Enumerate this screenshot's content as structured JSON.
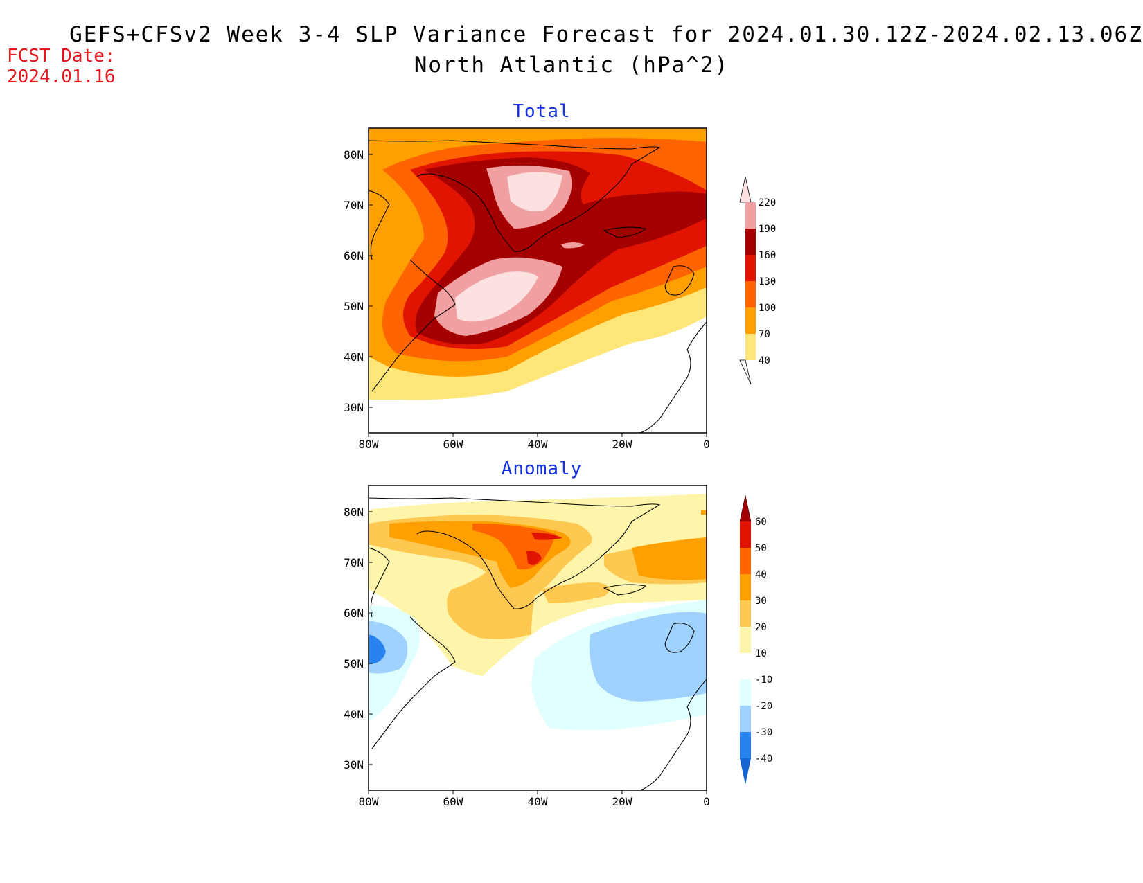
{
  "header": {
    "title_line1": "GEFS+CFSv2 Week 3-4 SLP Variance Forecast for 2024.01.30.12Z-2024.02.13.06Z",
    "title_line2": "North Atlantic (hPa^2)",
    "fcst_label": "FCST Date:",
    "fcst_date": "2024.01.16"
  },
  "panels": [
    {
      "title": "Total",
      "lat_labels": [
        "80N",
        "70N",
        "60N",
        "50N",
        "40N",
        "30N"
      ],
      "lon_labels": [
        "80W",
        "60W",
        "40W",
        "20W",
        "0"
      ],
      "colorbar": {
        "levels": [
          "220",
          "190",
          "160",
          "130",
          "100",
          "70",
          "40"
        ],
        "colors": [
          "#fde1e1",
          "#f0a0a0",
          "#a50000",
          "#e01400",
          "#ff6400",
          "#ffa000",
          "#ffe678"
        ]
      }
    },
    {
      "title": "Anomaly",
      "lat_labels": [
        "80N",
        "70N",
        "60N",
        "50N",
        "40N",
        "30N"
      ],
      "lon_labels": [
        "80W",
        "60W",
        "40W",
        "20W",
        "0"
      ],
      "colorbar": {
        "levels": [
          "60",
          "50",
          "40",
          "30",
          "20",
          "10",
          "-10",
          "-20",
          "-30",
          "-40"
        ],
        "colors": [
          "#a50000",
          "#e01400",
          "#ff6400",
          "#ffa000",
          "#ffc850",
          "#fff5aa",
          "#ffffff",
          "#e0ffff",
          "#a0d2ff",
          "#2882f0",
          "#1464d2"
        ]
      }
    }
  ]
}
